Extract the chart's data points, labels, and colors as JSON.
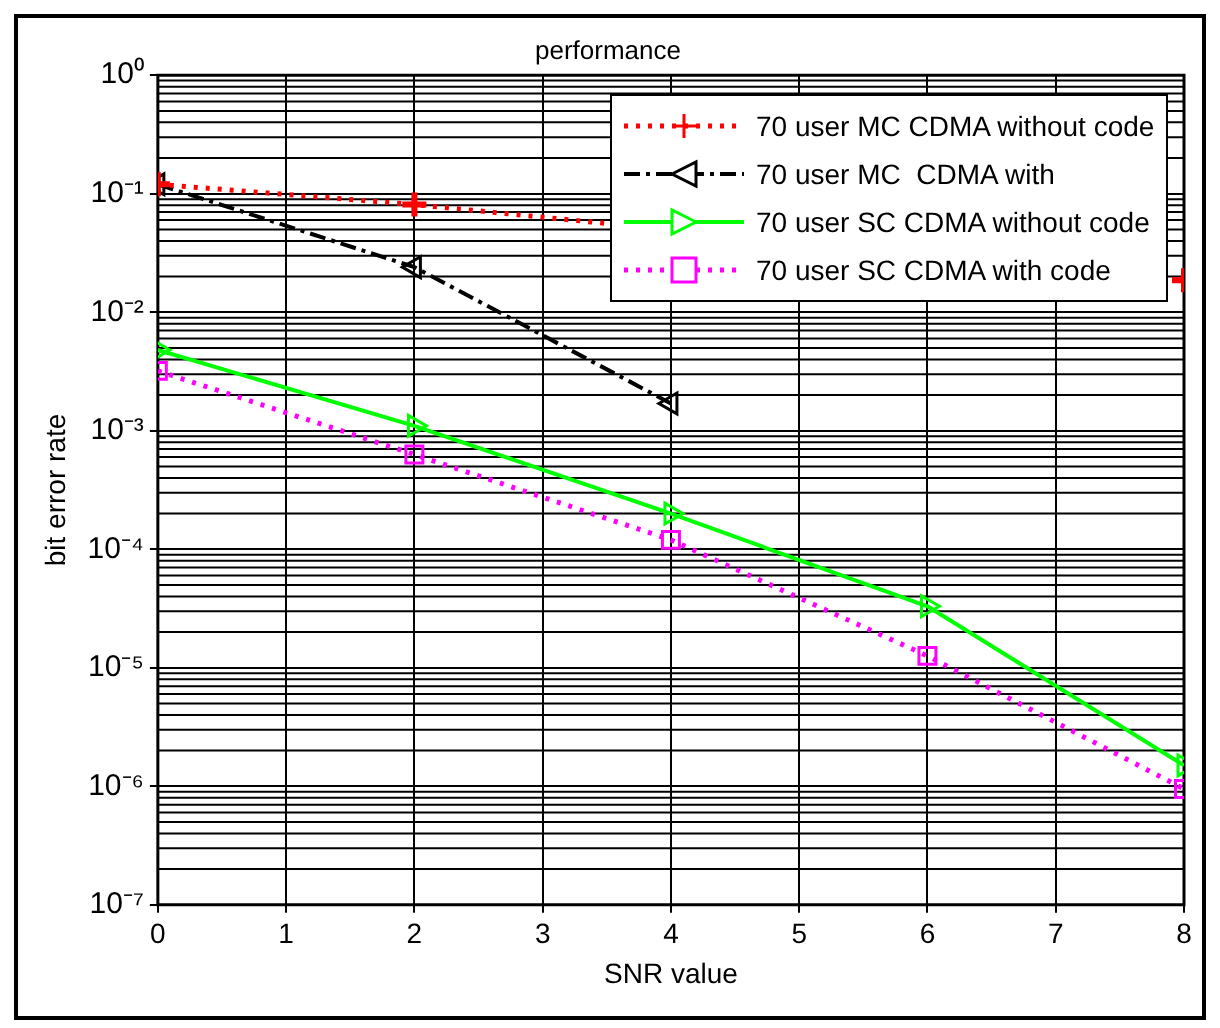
{
  "chart_data": {
    "type": "line",
    "title": "performance",
    "xlabel": "SNR value",
    "ylabel": "bit error rate",
    "x": [
      0,
      2,
      4,
      6,
      8
    ],
    "series": [
      {
        "name": "70 user MC CDMA without code",
        "color": "#ff0000",
        "values": [
          0.12,
          0.081,
          null,
          null,
          0.0186
        ],
        "marker": "cross",
        "line_style": "dotted"
      },
      {
        "name": "70 user MC  CDMA with",
        "color": "#000000",
        "values": [
          0.12,
          0.024,
          0.0017,
          null,
          null
        ],
        "marker": "triangle-left",
        "line_style": "dashdot"
      },
      {
        "name": "70 user SC CDMA without code",
        "color": "#00ff00",
        "values": [
          0.0048,
          0.0011,
          0.0002,
          3.3e-05,
          1.5e-06
        ],
        "marker": "triangle-right",
        "line_style": "solid"
      },
      {
        "name": "70 user SC CDMA with code",
        "color": "#ff00ff",
        "values": [
          0.0032,
          0.00063,
          0.00012,
          1.26e-05,
          9.5e-07
        ],
        "marker": "square",
        "line_style": "dotted"
      }
    ],
    "log": "y",
    "xlim": [
      0,
      8
    ],
    "xticks": [
      0,
      1,
      2,
      3,
      4,
      5,
      6,
      7,
      8
    ],
    "ylim": [
      1e-07,
      1
    ],
    "yticks": [
      {
        "value": 1e-07,
        "label": "10⁻⁷"
      },
      {
        "value": 1e-06,
        "label": "10⁻⁶"
      },
      {
        "value": 1e-05,
        "label": "10⁻⁵"
      },
      {
        "value": 0.0001,
        "label": "10⁻⁴"
      },
      {
        "value": 0.001,
        "label": "10⁻³"
      },
      {
        "value": 0.01,
        "label": "10⁻²"
      },
      {
        "value": 0.1,
        "label": "10⁻¹"
      },
      {
        "value": 1,
        "label": "10⁰"
      }
    ],
    "grid": true,
    "legend": "top right"
  }
}
